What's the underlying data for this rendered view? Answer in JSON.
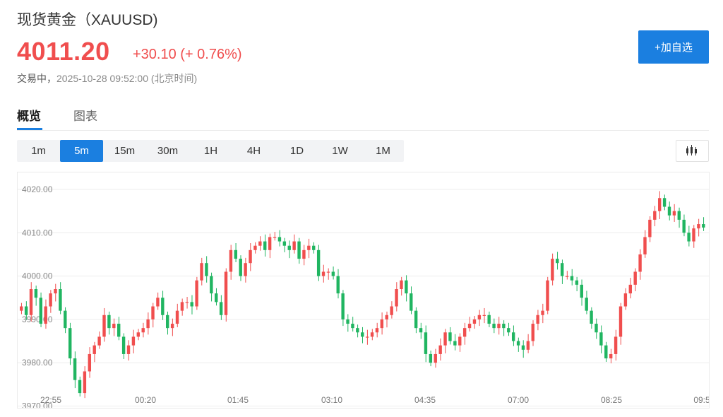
{
  "header": {
    "title": "现货黄金（XAUUSD)",
    "price": "4011.20",
    "change": "+30.10 (+ 0.76%)",
    "status_label": "交易中，",
    "timestamp": "2025-10-28 09:52:00",
    "timezone": "(北京时间)",
    "add_watchlist_label": "+加自选"
  },
  "tabs": [
    {
      "label": "概览",
      "active": true
    },
    {
      "label": "图表",
      "active": false
    }
  ],
  "intervals": [
    {
      "label": "1m",
      "active": false
    },
    {
      "label": "5m",
      "active": true
    },
    {
      "label": "15m",
      "active": false
    },
    {
      "label": "30m",
      "active": false
    },
    {
      "label": "1H",
      "active": false
    },
    {
      "label": "4H",
      "active": false
    },
    {
      "label": "1D",
      "active": false
    },
    {
      "label": "1W",
      "active": false
    },
    {
      "label": "1M",
      "active": false
    }
  ],
  "chart_type_icon": "candlestick-icon",
  "colors": {
    "up": "#f04e4e",
    "down": "#20b561",
    "accent": "#1b7fe0"
  },
  "chart_data": {
    "type": "candlestick",
    "interval": "5m",
    "x_ticks": [
      "22:55",
      "00:20",
      "01:45",
      "03:10",
      "04:35",
      "07:00",
      "08:25",
      "09:5"
    ],
    "y_ticks": [
      "4020.00",
      "4010.00",
      "4000.00",
      "3990.00",
      "3980.00",
      "3970.00"
    ],
    "ylim": [
      3970,
      4020
    ],
    "grid": true,
    "closes": [
      3993.0,
      3991.0,
      3997.0,
      3995.0,
      3989.0,
      3993.0,
      3996.0,
      3997.0,
      3992.0,
      3988.0,
      3981.0,
      3976.0,
      3973.0,
      3978.0,
      3982.0,
      3984.0,
      3986.0,
      3991.0,
      3988.0,
      3989.0,
      3986.0,
      3982.0,
      3984.0,
      3986.0,
      3987.0,
      3988.0,
      3990.0,
      3993.0,
      3995.0,
      3991.0,
      3988.0,
      3989.0,
      3992.0,
      3994.0,
      3994.0,
      3993.0,
      3999.0,
      4003.0,
      4000.0,
      3996.0,
      3994.0,
      3991.0,
      4001.0,
      4006.0,
      4004.0,
      4000.0,
      4003.0,
      4006.0,
      4007.0,
      4008.0,
      4006.0,
      4009.0,
      4009.0,
      4008.0,
      4007.0,
      4006.0,
      4008.0,
      4004.0,
      4006.0,
      4007.0,
      4006.0,
      4000.0,
      4001.0,
      4001.0,
      4000.0,
      3996.0,
      3990.0,
      3989.0,
      3988.0,
      3987.0,
      3986.0,
      3986.0,
      3987.0,
      3988.0,
      3990.0,
      3991.0,
      3993.0,
      3997.0,
      3999.0,
      3996.0,
      3992.0,
      3988.0,
      3987.0,
      3982.0,
      3980.0,
      3982.0,
      3984.0,
      3987.0,
      3985.0,
      3984.0,
      3986.0,
      3988.0,
      3989.0,
      3990.0,
      3991.0,
      3991.0,
      3989.0,
      3988.0,
      3989.0,
      3988.0,
      3987.0,
      3985.0,
      3984.0,
      3983.0,
      3985.0,
      3989.0,
      3991.0,
      3992.0,
      3999.0,
      4004.0,
      4003.0,
      4000.0,
      4000.0,
      3999.0,
      3998.0,
      3995.0,
      3992.0,
      3989.0,
      3987.0,
      3984.0,
      3981.0,
      3982.0,
      3986.0,
      3993.0,
      3996.0,
      3998.0,
      4001.0,
      4005.0,
      4009.0,
      4013.0,
      4015.0,
      4018.0,
      4016.0,
      4014.0,
      4015.0,
      4013.0,
      4010.0,
      4008.0,
      4011.0,
      4012.0,
      4011.2
    ]
  }
}
